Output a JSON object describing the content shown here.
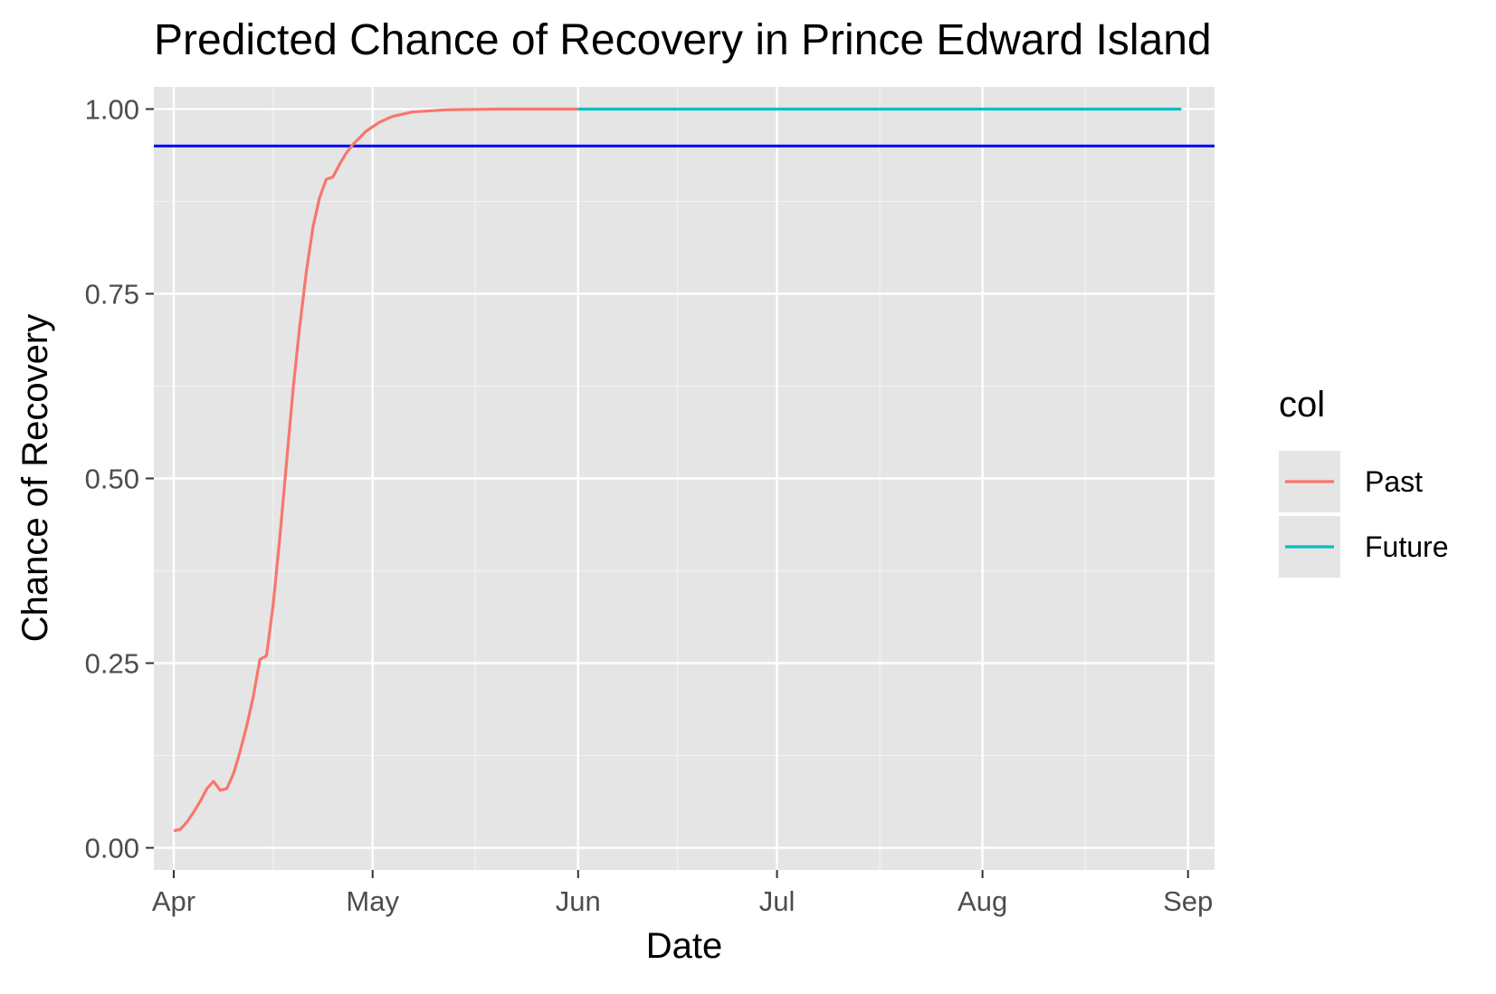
{
  "chart_data": {
    "type": "line",
    "title": "Predicted Chance of Recovery in Prince Edward Island",
    "xlabel": "Date",
    "ylabel": "Chance of Recovery",
    "x_type": "date",
    "xlim": [
      "2020-03-29",
      "2020-09-05"
    ],
    "ylim": [
      -0.03,
      1.03
    ],
    "x_ticks": [
      {
        "label": "Apr",
        "date": "2020-04-01"
      },
      {
        "label": "May",
        "date": "2020-05-01"
      },
      {
        "label": "Jun",
        "date": "2020-06-01"
      },
      {
        "label": "Jul",
        "date": "2020-07-01"
      },
      {
        "label": "Aug",
        "date": "2020-08-01"
      },
      {
        "label": "Sep",
        "date": "2020-09-01"
      }
    ],
    "y_ticks": [
      {
        "label": "0.00",
        "value": 0
      },
      {
        "label": "0.25",
        "value": 0.25
      },
      {
        "label": "0.50",
        "value": 0.5
      },
      {
        "label": "0.75",
        "value": 0.75
      },
      {
        "label": "1.00",
        "value": 1
      }
    ],
    "grid": true,
    "legend": {
      "title": "col",
      "position": "right"
    },
    "reference_line": {
      "y": 0.95,
      "color": "#0000ff"
    },
    "series": [
      {
        "name": "Past",
        "color": "#f8766d",
        "points": [
          [
            "2020-04-01",
            0.023
          ],
          [
            "2020-04-02",
            0.025
          ],
          [
            "2020-04-03",
            0.035
          ],
          [
            "2020-04-04",
            0.048
          ],
          [
            "2020-04-05",
            0.063
          ],
          [
            "2020-04-06",
            0.08
          ],
          [
            "2020-04-07",
            0.09
          ],
          [
            "2020-04-08",
            0.078
          ],
          [
            "2020-04-09",
            0.08
          ],
          [
            "2020-04-10",
            0.1
          ],
          [
            "2020-04-11",
            0.13
          ],
          [
            "2020-04-12",
            0.165
          ],
          [
            "2020-04-13",
            0.205
          ],
          [
            "2020-04-14",
            0.255
          ],
          [
            "2020-04-15",
            0.26
          ],
          [
            "2020-04-16",
            0.33
          ],
          [
            "2020-04-17",
            0.42
          ],
          [
            "2020-04-18",
            0.52
          ],
          [
            "2020-04-19",
            0.62
          ],
          [
            "2020-04-20",
            0.705
          ],
          [
            "2020-04-21",
            0.78
          ],
          [
            "2020-04-22",
            0.84
          ],
          [
            "2020-04-23",
            0.88
          ],
          [
            "2020-04-24",
            0.905
          ],
          [
            "2020-04-25",
            0.908
          ],
          [
            "2020-04-26",
            0.925
          ],
          [
            "2020-04-27",
            0.94
          ],
          [
            "2020-04-28",
            0.952
          ],
          [
            "2020-04-30",
            0.97
          ],
          [
            "2020-05-02",
            0.982
          ],
          [
            "2020-05-04",
            0.99
          ],
          [
            "2020-05-07",
            0.996
          ],
          [
            "2020-05-12",
            0.999
          ],
          [
            "2020-05-20",
            1.0
          ],
          [
            "2020-06-01",
            1.0
          ]
        ]
      },
      {
        "name": "Future",
        "color": "#00bfc4",
        "points": [
          [
            "2020-06-01",
            1.0
          ],
          [
            "2020-08-31",
            1.0
          ]
        ]
      }
    ]
  }
}
